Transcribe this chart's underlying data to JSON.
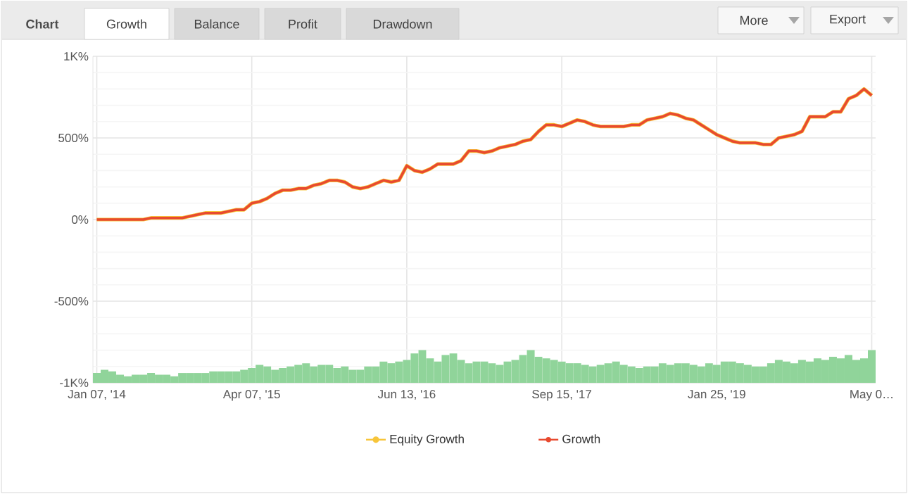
{
  "chart_data": {
    "type": "line",
    "annotations": [
      "Chart",
      "Growth",
      "Balance",
      "Profit",
      "Drawdown",
      "More",
      "Export"
    ],
    "categories": [
      "Jan 07, '14",
      null,
      null,
      null,
      null,
      null,
      null,
      null,
      null,
      null,
      null,
      null,
      null,
      null,
      null,
      null,
      null,
      null,
      null,
      null,
      "Apr 07, '15",
      null,
      null,
      null,
      null,
      null,
      null,
      null,
      null,
      null,
      null,
      null,
      null,
      null,
      null,
      null,
      null,
      null,
      null,
      null,
      "Jun 13, '16",
      null,
      null,
      null,
      null,
      null,
      null,
      null,
      null,
      null,
      null,
      null,
      null,
      null,
      null,
      null,
      null,
      null,
      null,
      null,
      "Sep 15, '17",
      null,
      null,
      null,
      null,
      null,
      null,
      null,
      null,
      null,
      null,
      null,
      null,
      null,
      null,
      null,
      null,
      null,
      null,
      null,
      "Jan 25, '19",
      null,
      null,
      null,
      null,
      null,
      null,
      null,
      null,
      null,
      null,
      null,
      null,
      null,
      null,
      null,
      null,
      null,
      null,
      null,
      "May 0…"
    ],
    "ylim": [
      -1000,
      1000
    ],
    "yticks": [
      {
        "value": -1000,
        "label": "-1K%"
      },
      {
        "value": -500,
        "label": "-500%"
      },
      {
        "value": 0,
        "label": "0%"
      },
      {
        "value": 500,
        "label": "500%"
      },
      {
        "value": 1000,
        "label": "1K%"
      }
    ],
    "grid": true,
    "legend": "bottom",
    "series": [
      {
        "color": "#90d49a",
        "type": "bar",
        "base": [
          -1000,
          -1000,
          -1000,
          -1000,
          -1000,
          -1000,
          -1000,
          -1000,
          -1000,
          -1000,
          -1000,
          -1000,
          -1000,
          -1000,
          -1000,
          -1000,
          -1000,
          -1000,
          -1000,
          -1000,
          -1000,
          -1000,
          -1000,
          -1000,
          -1000,
          -1000,
          -1000,
          -1000,
          -1000,
          -1000,
          -1000,
          -1000,
          -1000,
          -1000,
          -1000,
          -1000,
          -1000,
          -1000,
          -1000,
          -1000,
          -1000,
          -1000,
          -1000,
          -1000,
          -1000,
          -1000,
          -1000,
          -1000,
          -1000,
          -1000,
          -1000,
          -1000,
          -1000,
          -1000,
          -1000,
          -1000,
          -1000,
          -1000,
          -1000,
          -1000,
          -1000,
          -1000,
          -1000,
          -1000,
          -1000,
          -1000,
          -1000,
          -1000,
          -1000,
          -1000,
          -1000,
          -1000,
          -1000,
          -1000,
          -1000,
          -1000,
          -1000,
          -1000,
          -1000,
          -1000,
          -1000,
          -1000,
          -1000,
          -1000,
          -1000,
          -1000,
          -1000,
          -1000,
          -1000,
          -1000,
          -1000,
          -1000,
          -1000,
          -1000,
          -1000,
          -1000,
          -1000,
          -1000,
          -1000,
          -1000,
          -1000
        ],
        "values": [
          60,
          80,
          70,
          50,
          40,
          50,
          50,
          60,
          50,
          50,
          40,
          60,
          60,
          60,
          60,
          70,
          70,
          70,
          70,
          80,
          90,
          110,
          100,
          80,
          90,
          100,
          110,
          120,
          100,
          110,
          110,
          90,
          100,
          80,
          80,
          100,
          100,
          130,
          120,
          130,
          140,
          180,
          200,
          150,
          130,
          170,
          180,
          140,
          120,
          130,
          130,
          120,
          110,
          130,
          140,
          170,
          200,
          160,
          150,
          140,
          130,
          120,
          120,
          110,
          100,
          110,
          120,
          130,
          110,
          100,
          90,
          100,
          100,
          120,
          110,
          120,
          120,
          110,
          100,
          120,
          110,
          130,
          130,
          120,
          110,
          100,
          100,
          120,
          140,
          130,
          120,
          140,
          130,
          150,
          140,
          160,
          150,
          170,
          140,
          150,
          200
        ]
      },
      {
        "name": "Equity Growth",
        "color": "#f7c53a",
        "values": [
          0,
          0,
          0,
          0,
          0,
          0,
          0,
          10,
          10,
          10,
          10,
          10,
          20,
          30,
          40,
          40,
          40,
          50,
          60,
          60,
          100,
          110,
          130,
          160,
          180,
          180,
          190,
          190,
          210,
          220,
          240,
          240,
          230,
          200,
          190,
          200,
          220,
          240,
          230,
          240,
          330,
          300,
          290,
          310,
          340,
          340,
          340,
          360,
          420,
          420,
          410,
          420,
          440,
          450,
          460,
          480,
          490,
          540,
          580,
          580,
          570,
          590,
          610,
          600,
          580,
          570,
          570,
          570,
          570,
          580,
          580,
          610,
          620,
          630,
          650,
          640,
          620,
          610,
          580,
          550,
          520,
          500,
          480,
          470,
          470,
          470,
          460,
          460,
          500,
          510,
          520,
          540,
          630,
          630,
          630,
          660,
          660,
          740,
          760,
          800,
          760
        ]
      },
      {
        "name": "Growth",
        "color": "#e84a2f",
        "values": [
          0,
          0,
          0,
          0,
          0,
          0,
          0,
          10,
          10,
          10,
          10,
          10,
          20,
          30,
          40,
          40,
          40,
          50,
          60,
          60,
          100,
          110,
          130,
          160,
          180,
          180,
          190,
          190,
          210,
          220,
          240,
          240,
          230,
          200,
          190,
          200,
          220,
          240,
          230,
          240,
          330,
          300,
          290,
          310,
          340,
          340,
          340,
          360,
          420,
          420,
          410,
          420,
          440,
          450,
          460,
          480,
          490,
          540,
          580,
          580,
          570,
          590,
          610,
          600,
          580,
          570,
          570,
          570,
          570,
          580,
          580,
          610,
          620,
          630,
          650,
          640,
          620,
          610,
          580,
          550,
          520,
          500,
          480,
          470,
          470,
          470,
          460,
          460,
          500,
          510,
          520,
          540,
          630,
          630,
          630,
          660,
          660,
          740,
          760,
          800,
          760
        ]
      }
    ]
  }
}
